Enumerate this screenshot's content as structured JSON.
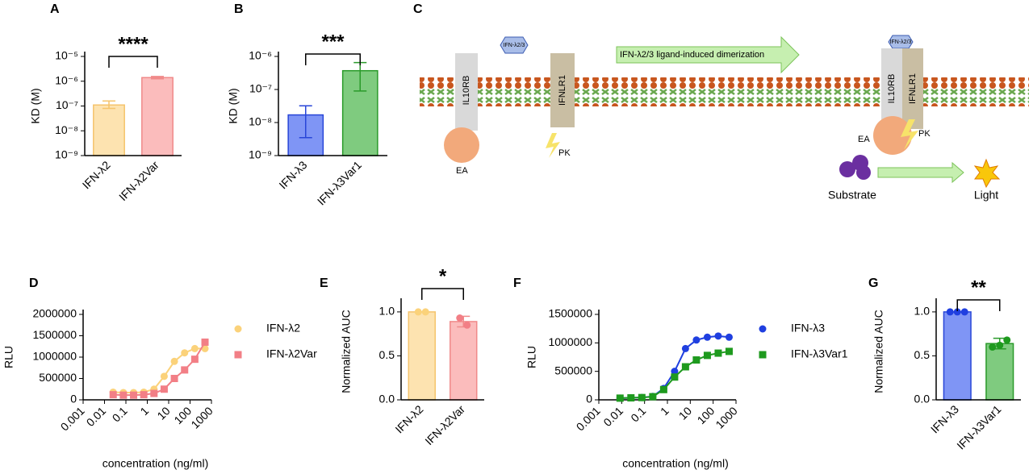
{
  "chart_data": [
    {
      "panel": "A",
      "type": "bar",
      "ylabel": "KD (M)",
      "categories": [
        "IFN-λ2",
        "IFN-λ2Var"
      ],
      "values": [
        1.1e-07,
        1.4e-06
      ],
      "error_low": [
        8e-08,
        1.25e-06
      ],
      "error_high": [
        1.6e-07,
        1.55e-06
      ],
      "colors": [
        "#fde3b0",
        "#fbbcbc"
      ],
      "edge_colors": [
        "#f5c46c",
        "#f08a8a"
      ],
      "log_y": true,
      "ylim": [
        1e-09,
        1e-05
      ],
      "yticks": [
        {
          "value": 1e-09,
          "label": "10⁻⁹"
        },
        {
          "value": 1e-08,
          "label": "10⁻⁸"
        },
        {
          "value": 1e-07,
          "label": "10⁻⁷"
        },
        {
          "value": 1e-06,
          "label": "10⁻⁶"
        },
        {
          "value": 1e-05,
          "label": "10⁻⁵"
        }
      ],
      "significance": "****"
    },
    {
      "panel": "B",
      "type": "bar",
      "ylabel": "KD (M)",
      "categories": [
        "IFN-λ3",
        "IFN-λ3Var1"
      ],
      "values": [
        1.7e-08,
        3.7e-07
      ],
      "error_low": [
        3.5e-09,
        9e-08
      ],
      "error_high": [
        3.2e-08,
        6.5e-07
      ],
      "colors": [
        "#7f95f5",
        "#7fcb7f"
      ],
      "edge_colors": [
        "#2846d8",
        "#2a9a2a"
      ],
      "log_y": true,
      "ylim": [
        1e-09,
        1e-06
      ],
      "yticks": [
        {
          "value": 1e-09,
          "label": "10⁻⁹"
        },
        {
          "value": 1e-08,
          "label": "10⁻⁸"
        },
        {
          "value": 1e-07,
          "label": "10⁻⁷"
        },
        {
          "value": 1e-06,
          "label": "10⁻⁶"
        }
      ],
      "significance": "***"
    },
    {
      "panel": "D",
      "type": "scatter",
      "ylabel": "RLU",
      "xlabel": "concentration (ng/ml)",
      "log_x": true,
      "xlim": [
        0.001,
        1000
      ],
      "xticks": [
        0.001,
        0.01,
        0.1,
        1,
        10,
        100,
        1000
      ],
      "ylim": [
        0,
        2000000
      ],
      "yticks": [
        0,
        500000,
        1000000,
        1500000,
        2000000
      ],
      "x": [
        0.0254,
        0.0762,
        0.229,
        0.686,
        2.06,
        6.17,
        18.5,
        55.6,
        166.7,
        500
      ],
      "series": [
        {
          "name": "IFN-λ2",
          "color": "#fbd27a",
          "marker": "circle",
          "values": [
            180000,
            170000,
            170000,
            180000,
            250000,
            550000,
            900000,
            1100000,
            1200000,
            1200000
          ]
        },
        {
          "name": "IFN-λ2Var",
          "color": "#f27f86",
          "marker": "square",
          "values": [
            120000,
            110000,
            110000,
            120000,
            150000,
            250000,
            500000,
            700000,
            950000,
            1350000
          ]
        }
      ]
    },
    {
      "panel": "E",
      "type": "bar",
      "ylabel": "Normalized AUC",
      "categories": [
        "IFN-λ2",
        "IFN-λ2Var"
      ],
      "values": [
        1.0,
        0.89
      ],
      "errors": [
        0,
        0.06
      ],
      "points": [
        [
          1.0,
          1.0
        ],
        [
          0.93,
          0.85
        ]
      ],
      "point_colors": [
        "#fbd27a",
        "#f27f86"
      ],
      "colors": [
        "#fde3b0",
        "#fbbcbc"
      ],
      "edge_colors": [
        "#f5c46c",
        "#f08a8a"
      ],
      "ylim": [
        0,
        1.1
      ],
      "yticks": [
        {
          "value": 0,
          "label": "0.0"
        },
        {
          "value": 0.5,
          "label": "0.5"
        },
        {
          "value": 1,
          "label": "1.0"
        }
      ],
      "significance": "*"
    },
    {
      "panel": "F",
      "type": "scatter",
      "ylabel": "RLU",
      "xlabel": "concentration (ng/ml)",
      "log_x": true,
      "xlim": [
        0.001,
        1000
      ],
      "xticks": [
        0.001,
        0.01,
        0.1,
        1,
        10,
        100,
        1000
      ],
      "ylim": [
        0,
        1500000
      ],
      "yticks": [
        0,
        500000,
        1000000,
        1500000
      ],
      "x": [
        0.00847,
        0.0254,
        0.0762,
        0.229,
        0.686,
        2.06,
        6.17,
        18.5,
        55.6,
        166.7,
        500
      ],
      "series": [
        {
          "name": "IFN-λ3",
          "color": "#1f3fe0",
          "marker": "circle",
          "values": [
            30000,
            35000,
            40000,
            60000,
            200000,
            500000,
            900000,
            1050000,
            1100000,
            1120000,
            1100000
          ]
        },
        {
          "name": "IFN-λ3Var1",
          "color": "#1e9a1e",
          "marker": "square",
          "values": [
            30000,
            35000,
            40000,
            55000,
            180000,
            400000,
            580000,
            700000,
            780000,
            820000,
            850000
          ]
        }
      ]
    },
    {
      "panel": "G",
      "type": "bar",
      "ylabel": "Normalized AUC",
      "categories": [
        "IFN-λ3",
        "IFN-λ3Var1"
      ],
      "values": [
        1.0,
        0.64
      ],
      "errors": [
        0,
        0.06
      ],
      "points": [
        [
          1.0,
          1.0,
          1.0
        ],
        [
          0.6,
          0.62,
          0.68
        ]
      ],
      "point_colors": [
        "#1f3fe0",
        "#1e9a1e"
      ],
      "colors": [
        "#7f95f5",
        "#7fcb7f"
      ],
      "edge_colors": [
        "#2846d8",
        "#2a9a2a"
      ],
      "ylim": [
        0,
        1.1
      ],
      "yticks": [
        {
          "value": 0,
          "label": "0.0"
        },
        {
          "value": 0.5,
          "label": "0.5"
        },
        {
          "value": 1,
          "label": "1.0"
        }
      ],
      "significance": "**"
    }
  ],
  "diagram": {
    "panel": "C",
    "ligand": "IFN-λ2/3",
    "arrow_label": "IFN-λ2/3 ligand-induced dimerization",
    "receptor_1": "IL10RB",
    "receptor_2": "IFNLR1",
    "fragment_1": "EA",
    "fragment_2": "PK",
    "substrate": "Substrate",
    "product": "Light"
  }
}
